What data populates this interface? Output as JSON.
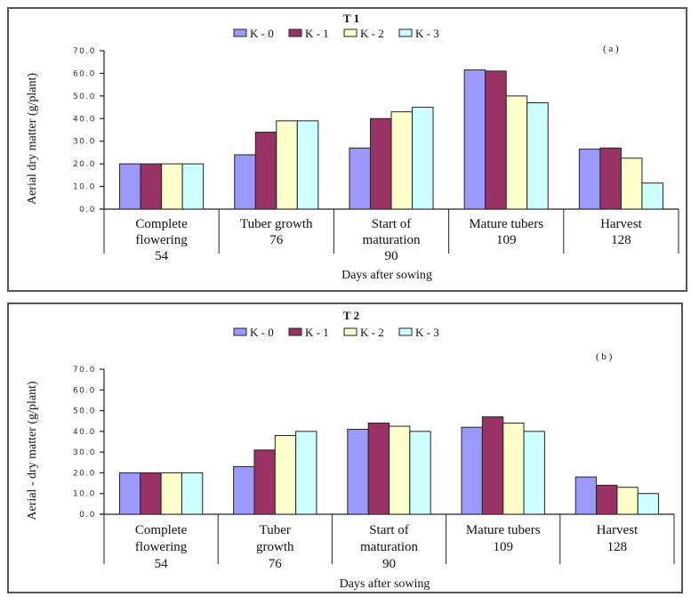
{
  "chart_data": [
    {
      "type": "bar",
      "panel_label": "( a )",
      "title": "T 1",
      "ylabel": "Aerial  dry matter  (g/plant)",
      "xlabel": "Days after sowing",
      "ylim": [
        0,
        70
      ],
      "yticks": [
        "0.0",
        "10.0",
        "20.0",
        "30.0",
        "40.0",
        "50.0",
        "60.0",
        "70.0"
      ],
      "legend_position": "top-center",
      "grid": false,
      "categories": [
        {
          "lines": [
            "Complete",
            "flowering",
            "54"
          ]
        },
        {
          "lines": [
            "Tuber  growth",
            "76"
          ]
        },
        {
          "lines": [
            "Start of",
            "maturation",
            "90"
          ]
        },
        {
          "lines": [
            "Mature tubers",
            "109"
          ]
        },
        {
          "lines": [
            "Harvest",
            "128"
          ]
        }
      ],
      "series": [
        {
          "name": "K - 0",
          "color": "#9999ff",
          "values": [
            20.0,
            24.0,
            27.0,
            61.5,
            26.5
          ]
        },
        {
          "name": "K - 1",
          "color": "#993366",
          "values": [
            20.0,
            34.0,
            40.0,
            61.0,
            27.0
          ]
        },
        {
          "name": "K - 2",
          "color": "#ffffcc",
          "values": [
            20.0,
            39.0,
            43.0,
            50.0,
            22.5
          ]
        },
        {
          "name": "K - 3",
          "color": "#ccffff",
          "values": [
            20.0,
            39.0,
            45.0,
            47.0,
            11.5
          ]
        }
      ]
    },
    {
      "type": "bar",
      "panel_label": "( b )",
      "title": "T 2",
      "ylabel": "Aerial - dry matter  (g/plant)",
      "xlabel": "Days after sowing",
      "ylim": [
        0,
        70
      ],
      "yticks": [
        "0.0",
        "10.0",
        "20.0",
        "30.0",
        "40.0",
        "50.0",
        "60.0",
        "70.0"
      ],
      "legend_position": "top-center",
      "grid": false,
      "categories": [
        {
          "lines": [
            "Complete",
            "flowering",
            "54"
          ]
        },
        {
          "lines": [
            "Tuber",
            "growth",
            "76"
          ]
        },
        {
          "lines": [
            "Start of",
            "maturation",
            "90"
          ]
        },
        {
          "lines": [
            "Mature tubers",
            "109"
          ]
        },
        {
          "lines": [
            "Harvest",
            "128"
          ]
        }
      ],
      "series": [
        {
          "name": "K - 0",
          "color": "#9999ff",
          "values": [
            20.0,
            23.0,
            41.0,
            42.0,
            18.0
          ]
        },
        {
          "name": "K - 1",
          "color": "#993366",
          "values": [
            20.0,
            31.0,
            44.0,
            47.0,
            14.0
          ]
        },
        {
          "name": "K - 2",
          "color": "#ffffcc",
          "values": [
            20.0,
            38.0,
            42.5,
            44.0,
            13.0
          ]
        },
        {
          "name": "K - 3",
          "color": "#ccffff",
          "values": [
            20.0,
            40.0,
            40.0,
            40.0,
            10.0
          ]
        }
      ]
    }
  ]
}
